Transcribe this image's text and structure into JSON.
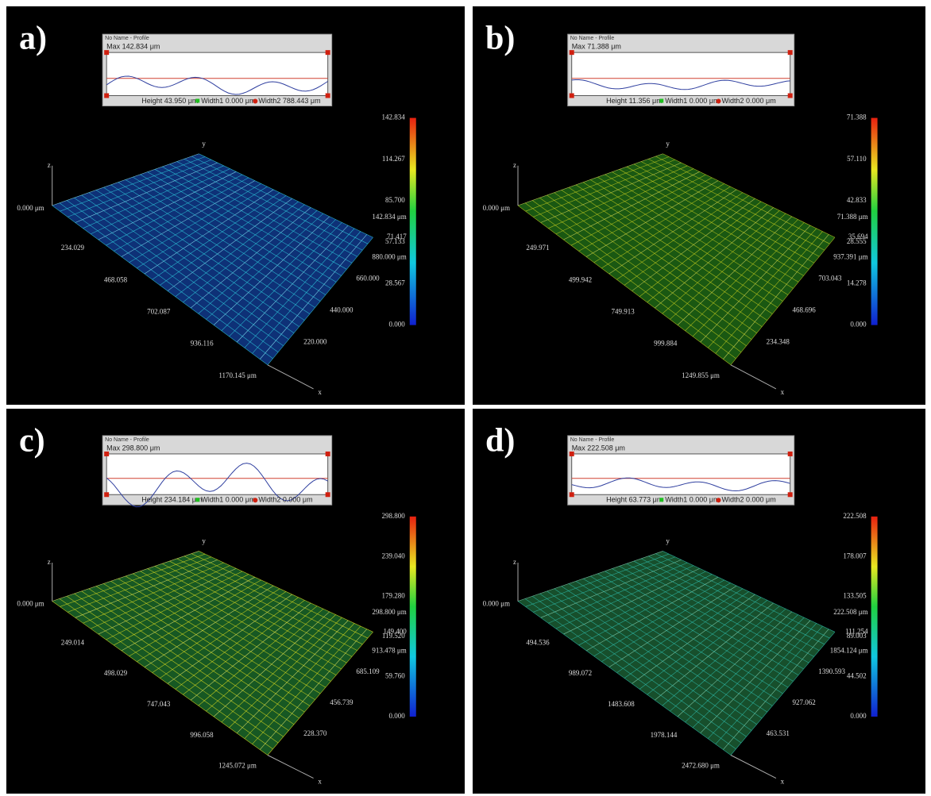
{
  "panels": [
    {
      "label": "a)",
      "window": {
        "title": "No Name - Profile",
        "max": "Max  142.834 μm",
        "height": "Height  43.950 μm",
        "width1": "Width1  0.000 μm",
        "width2": "Width2  788.443 μm"
      },
      "origin": "0.000 μm",
      "z_axis": "z",
      "y_axis": "y",
      "x_axis": "x",
      "x_ticks": [
        "234.029",
        "468.058",
        "702.087",
        "936.116",
        "1170.145 μm"
      ],
      "y_ticks": [
        "660.000",
        "440.000",
        "220.000"
      ],
      "colorbar": [
        "142.834",
        "114.267",
        "85.700",
        "57.133",
        "28.567",
        "0.000"
      ],
      "overlap": [
        "142.834 μm",
        "71.417",
        "880.000 μm"
      ]
    },
    {
      "label": "b)",
      "window": {
        "title": "No Name - Profile",
        "max": "Max  71.388 μm",
        "height": "Height  11.356 μm",
        "width1": "Width1  0.000 μm",
        "width2": "Width2  0.000 μm"
      },
      "origin": "0.000 μm",
      "z_axis": "z",
      "y_axis": "y",
      "x_axis": "x",
      "x_ticks": [
        "249.971",
        "499.942",
        "749.913",
        "999.884",
        "1249.855 μm"
      ],
      "y_ticks": [
        "703.043",
        "468.696",
        "234.348"
      ],
      "colorbar": [
        "71.388",
        "57.110",
        "42.833",
        "28.555",
        "14.278",
        "0.000"
      ],
      "overlap": [
        "71.388 μm",
        "35.694",
        "937.391 μm"
      ]
    },
    {
      "label": "c)",
      "window": {
        "title": "No Name - Profile",
        "max": "Max  298.800 μm",
        "height": "Height  234.184 μm",
        "width1": "Width1  0.000 μm",
        "width2": "Width2  0.000 μm"
      },
      "origin": "0.000 μm",
      "z_axis": "z",
      "y_axis": "y",
      "x_axis": "x",
      "x_ticks": [
        "249.014",
        "498.029",
        "747.043",
        "996.058",
        "1245.072 μm"
      ],
      "y_ticks": [
        "685.109",
        "456.739",
        "228.370"
      ],
      "colorbar": [
        "298.800",
        "239.040",
        "179.280",
        "119.520",
        "59.760",
        "0.000"
      ],
      "overlap": [
        "298.800 μm",
        "149.400",
        "913.478 μm"
      ]
    },
    {
      "label": "d)",
      "window": {
        "title": "No Name - Profile",
        "max": "Max  222.508 μm",
        "height": "Height  63.773 μm",
        "width1": "Width1  0.000 μm",
        "width2": "Width2  0.000 μm"
      },
      "origin": "0.000 μm",
      "z_axis": "z",
      "y_axis": "y",
      "x_axis": "x",
      "x_ticks": [
        "494.536",
        "989.072",
        "1483.608",
        "1978.144",
        "2472.680 μm"
      ],
      "y_ticks": [
        "1390.593",
        "927.062",
        "463.531"
      ],
      "colorbar": [
        "222.508",
        "178.007",
        "133.505",
        "89.003",
        "44.502",
        "0.000"
      ],
      "overlap": [
        "222.508 μm",
        "111.254",
        "1854.124 μm"
      ]
    }
  ]
}
